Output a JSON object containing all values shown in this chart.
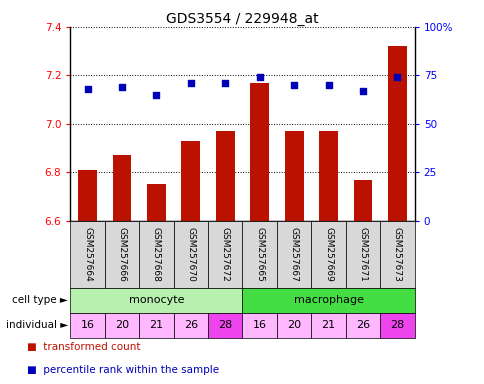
{
  "title": "GDS3554 / 229948_at",
  "samples": [
    "GSM257664",
    "GSM257666",
    "GSM257668",
    "GSM257670",
    "GSM257672",
    "GSM257665",
    "GSM257667",
    "GSM257669",
    "GSM257671",
    "GSM257673"
  ],
  "red_values": [
    6.81,
    6.87,
    6.75,
    6.93,
    6.97,
    7.17,
    6.97,
    6.97,
    6.77,
    7.32
  ],
  "blue_values": [
    68,
    69,
    65,
    71,
    71,
    74,
    70,
    70,
    67,
    74
  ],
  "ylim_left": [
    6.6,
    7.4
  ],
  "ylim_right": [
    0,
    100
  ],
  "yticks_left": [
    6.6,
    6.8,
    7.0,
    7.2,
    7.4
  ],
  "yticks_right": [
    0,
    25,
    50,
    75,
    100
  ],
  "cell_types": [
    {
      "label": "monocyte",
      "start": 0,
      "end": 5,
      "color": "#b8f0b0"
    },
    {
      "label": "macrophage",
      "start": 5,
      "end": 10,
      "color": "#44dd44"
    }
  ],
  "individuals": [
    "16",
    "20",
    "21",
    "26",
    "28",
    "16",
    "20",
    "21",
    "26",
    "28"
  ],
  "ind_colors": [
    "#ffb8ff",
    "#ffb8ff",
    "#ffb8ff",
    "#ffb8ff",
    "#ee44ee",
    "#ffb8ff",
    "#ffb8ff",
    "#ffb8ff",
    "#ffb8ff",
    "#ee44ee"
  ],
  "bar_color": "#bb1100",
  "dot_color": "#0000bb",
  "bar_bottom": 6.6,
  "title_fontsize": 10,
  "tick_fontsize": 7.5,
  "sample_label_fontsize": 6.5,
  "ct_fontsize": 8,
  "ind_fontsize": 8,
  "legend_fontsize": 7.5
}
